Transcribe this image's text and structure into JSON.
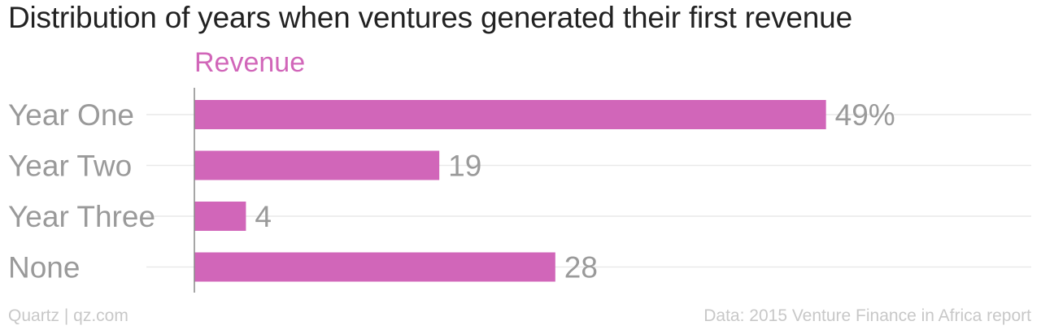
{
  "title": "Distribution of years when ventures generated their first revenue",
  "footer": {
    "source_left": "Quartz | qz.com",
    "source_right": "Data: 2015 Venture Finance in Africa report"
  },
  "colors": {
    "bar": "#d166b9",
    "category_label": "#9a9a9a",
    "value_label": "#9a9a9a",
    "gridline": "#e9e9e9",
    "axis": "#888888"
  },
  "chart_data": {
    "type": "bar",
    "orientation": "horizontal",
    "categories": [
      "Year One",
      "Year Two",
      "Year Three",
      "None"
    ],
    "series": [
      {
        "name": "Revenue",
        "values": [
          49,
          19,
          4,
          28
        ]
      }
    ],
    "value_labels": [
      "49%",
      "19",
      "4",
      "28"
    ],
    "xlim": [
      0,
      55
    ],
    "grid": true,
    "legend_position": "top-left"
  }
}
